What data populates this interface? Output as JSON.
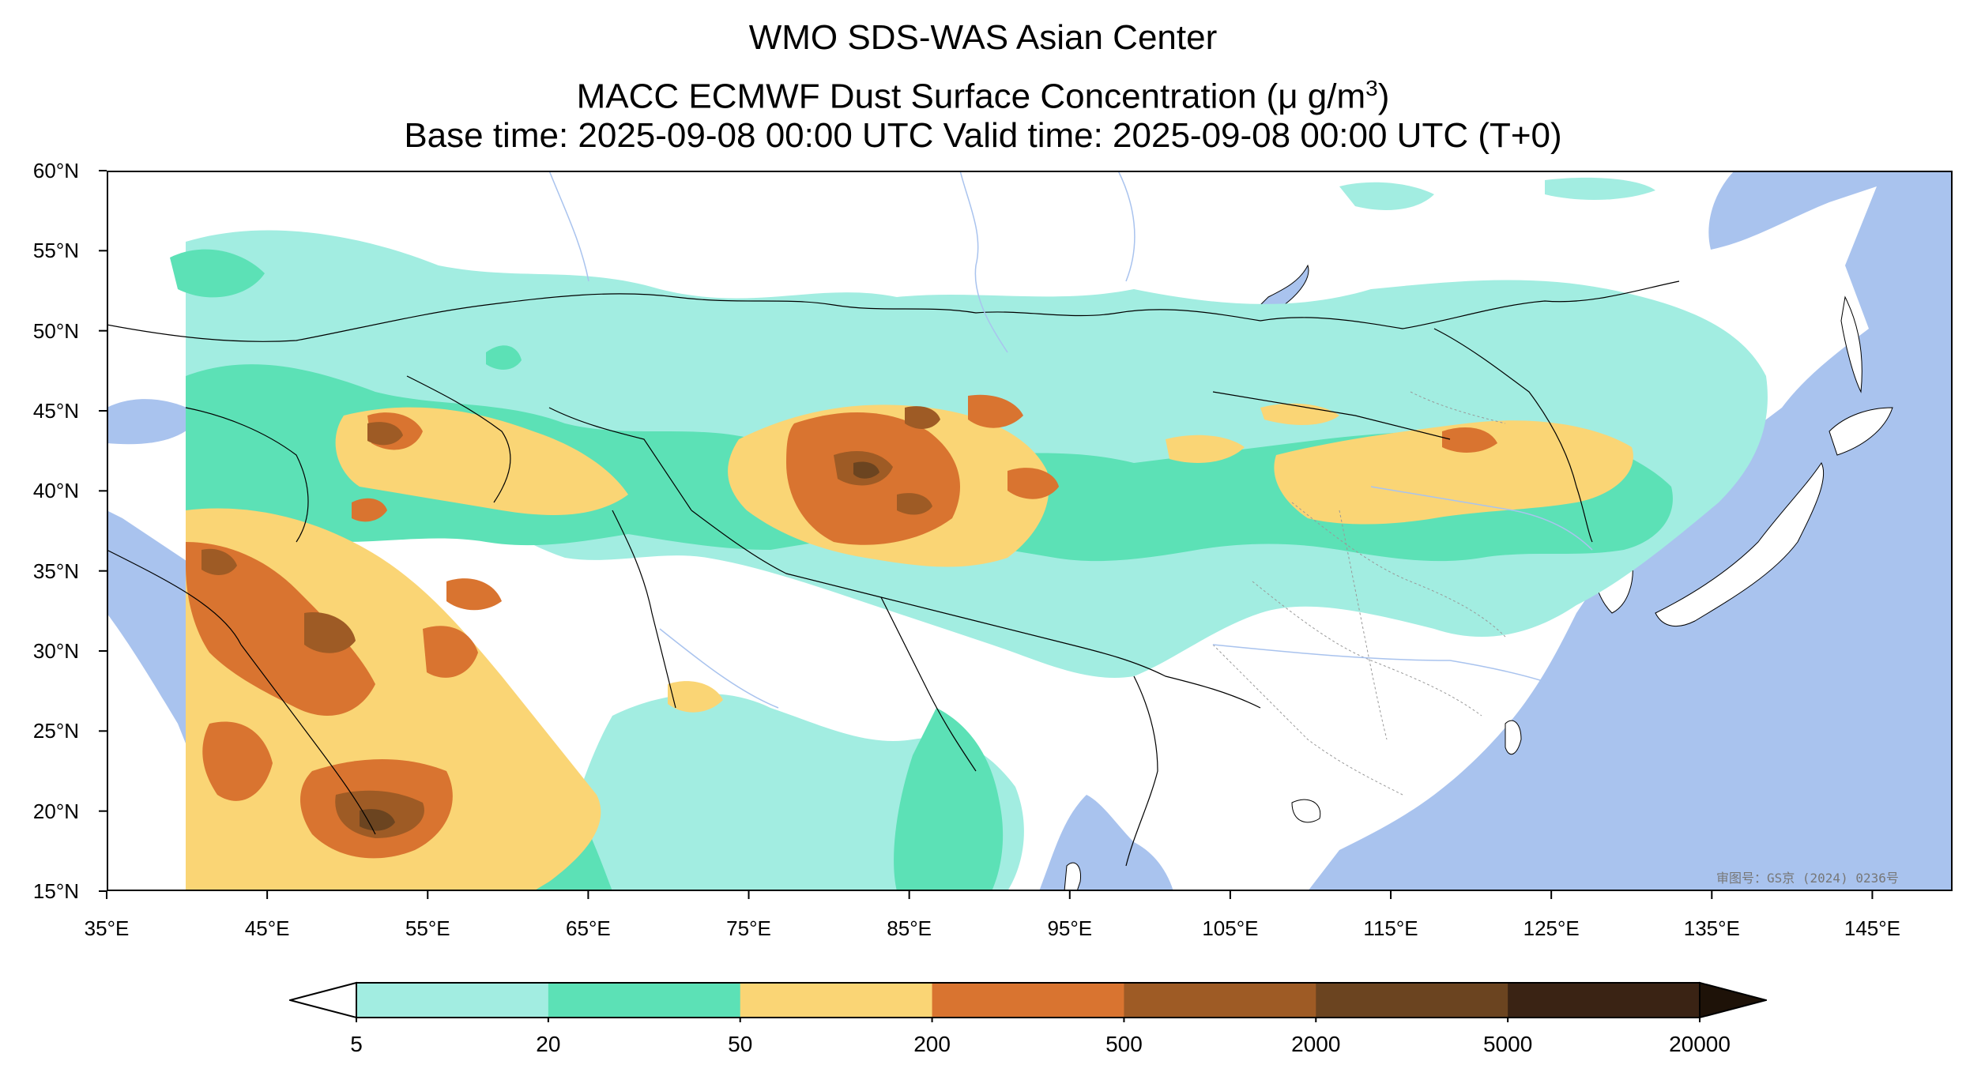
{
  "title": {
    "line1": "WMO SDS-WAS Asian Center",
    "line2_prefix": "MACC ECMWF Dust Surface Concentration (",
    "line2_unit": "μ g/m",
    "line2_sup": "3",
    "line2_suffix": ")",
    "line3": "Base time: 2025-09-08 00:00 UTC Valid time: 2025-09-08 00:00 UTC (T+0)"
  },
  "map": {
    "lon_range": [
      35,
      150
    ],
    "lat_range": [
      15,
      60
    ],
    "lat_ticks": [
      {
        "value": 60,
        "label": "60°N"
      },
      {
        "value": 55,
        "label": "55°N"
      },
      {
        "value": 50,
        "label": "50°N"
      },
      {
        "value": 45,
        "label": "45°N"
      },
      {
        "value": 40,
        "label": "40°N"
      },
      {
        "value": 35,
        "label": "35°N"
      },
      {
        "value": 30,
        "label": "30°N"
      },
      {
        "value": 25,
        "label": "25°N"
      },
      {
        "value": 20,
        "label": "20°N"
      },
      {
        "value": 15,
        "label": "15°N"
      }
    ],
    "lon_ticks": [
      {
        "value": 35,
        "label": "35°E"
      },
      {
        "value": 45,
        "label": "45°E"
      },
      {
        "value": 55,
        "label": "55°E"
      },
      {
        "value": 65,
        "label": "65°E"
      },
      {
        "value": 75,
        "label": "75°E"
      },
      {
        "value": 85,
        "label": "85°E"
      },
      {
        "value": 95,
        "label": "95°E"
      },
      {
        "value": 105,
        "label": "105°E"
      },
      {
        "value": 115,
        "label": "115°E"
      },
      {
        "value": 125,
        "label": "125°E"
      },
      {
        "value": 135,
        "label": "135°E"
      },
      {
        "value": 145,
        "label": "145°E"
      }
    ],
    "water_color": "#a9c3ee",
    "land_color": "#ffffff",
    "watermark": "审图号：GS京 (2024) 0236号"
  },
  "colorbar": {
    "levels": [
      "5",
      "20",
      "50",
      "200",
      "500",
      "2000",
      "5000",
      "20000"
    ],
    "colors": [
      "#a2ede1",
      "#5ce1b6",
      "#fad575",
      "#d97430",
      "#9e5b25",
      "#6b4420",
      "#3a2314"
    ],
    "extend": "both",
    "under_color": "#ffffff",
    "over_color": "#1e1208"
  }
}
